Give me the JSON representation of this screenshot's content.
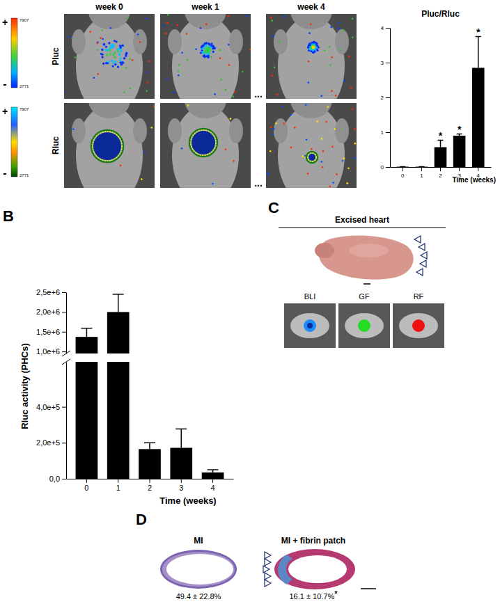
{
  "chart_data": [
    {
      "type": "bar",
      "title": "Pluc/Rluc",
      "x_label": "Time (weeks)",
      "categories": [
        "0",
        "1",
        "2",
        "3",
        "4"
      ],
      "values": [
        0.01,
        0.01,
        0.57,
        0.9,
        2.85
      ],
      "errors": [
        0,
        0,
        0.2,
        0.05,
        0.9
      ],
      "color": "#000000",
      "ylim": [
        0,
        4
      ],
      "yticks": [
        0,
        1,
        2,
        3,
        4
      ],
      "annotations": [
        {
          "x": 2,
          "text": "*"
        },
        {
          "x": 3,
          "text": "*"
        },
        {
          "x": 4,
          "text": "*"
        }
      ]
    },
    {
      "type": "bar",
      "y_label": "Rluc activity (PHCs)",
      "x_label": "Time (weeks)",
      "categories": [
        "0",
        "1",
        "2",
        "3",
        "4"
      ],
      "values": [
        1370000,
        2000000,
        165000,
        172000,
        35000
      ],
      "errors": [
        220000,
        450000,
        35000,
        105000,
        15000
      ],
      "color": "#000000",
      "segments": [
        {
          "ylim": [
            0,
            650000
          ],
          "yticks": [
            {
              "value": 0,
              "label": "0,0"
            },
            {
              "value": 200000,
              "label": "2,0e+5"
            },
            {
              "value": 400000,
              "label": "4,0e+5"
            }
          ]
        },
        {
          "ylim": [
            950000,
            2500000
          ],
          "yticks": [
            {
              "value": 1000000,
              "label": "1,0e+6"
            },
            {
              "value": 1500000,
              "label": "1,5e+6"
            },
            {
              "value": 2000000,
              "label": "2,0e+6"
            },
            {
              "value": 2500000,
              "label": "2,5e+6"
            }
          ]
        }
      ]
    }
  ],
  "panel_labels": [
    "B",
    "C",
    "D"
  ],
  "panel_a": {
    "row_labels": [
      "Pluc",
      "Rluc"
    ],
    "column_labels": [
      "week 0",
      "week 1",
      "week 4"
    ],
    "ellipsis": "...",
    "colorbar": {
      "max_label": "+",
      "min_label": "-",
      "ticks": [
        "7307",
        "2771"
      ]
    }
  },
  "panel_c": {
    "title": "Excised heart",
    "images": [
      "BLI",
      "GF",
      "RF"
    ]
  },
  "panel_d": {
    "groups": [
      {
        "title": "MI",
        "value_text": "49.4 ± 22.8%"
      },
      {
        "title": "MI + fibrin patch",
        "value_text": "16.1 ± 10.7%",
        "mark": "*"
      }
    ]
  }
}
